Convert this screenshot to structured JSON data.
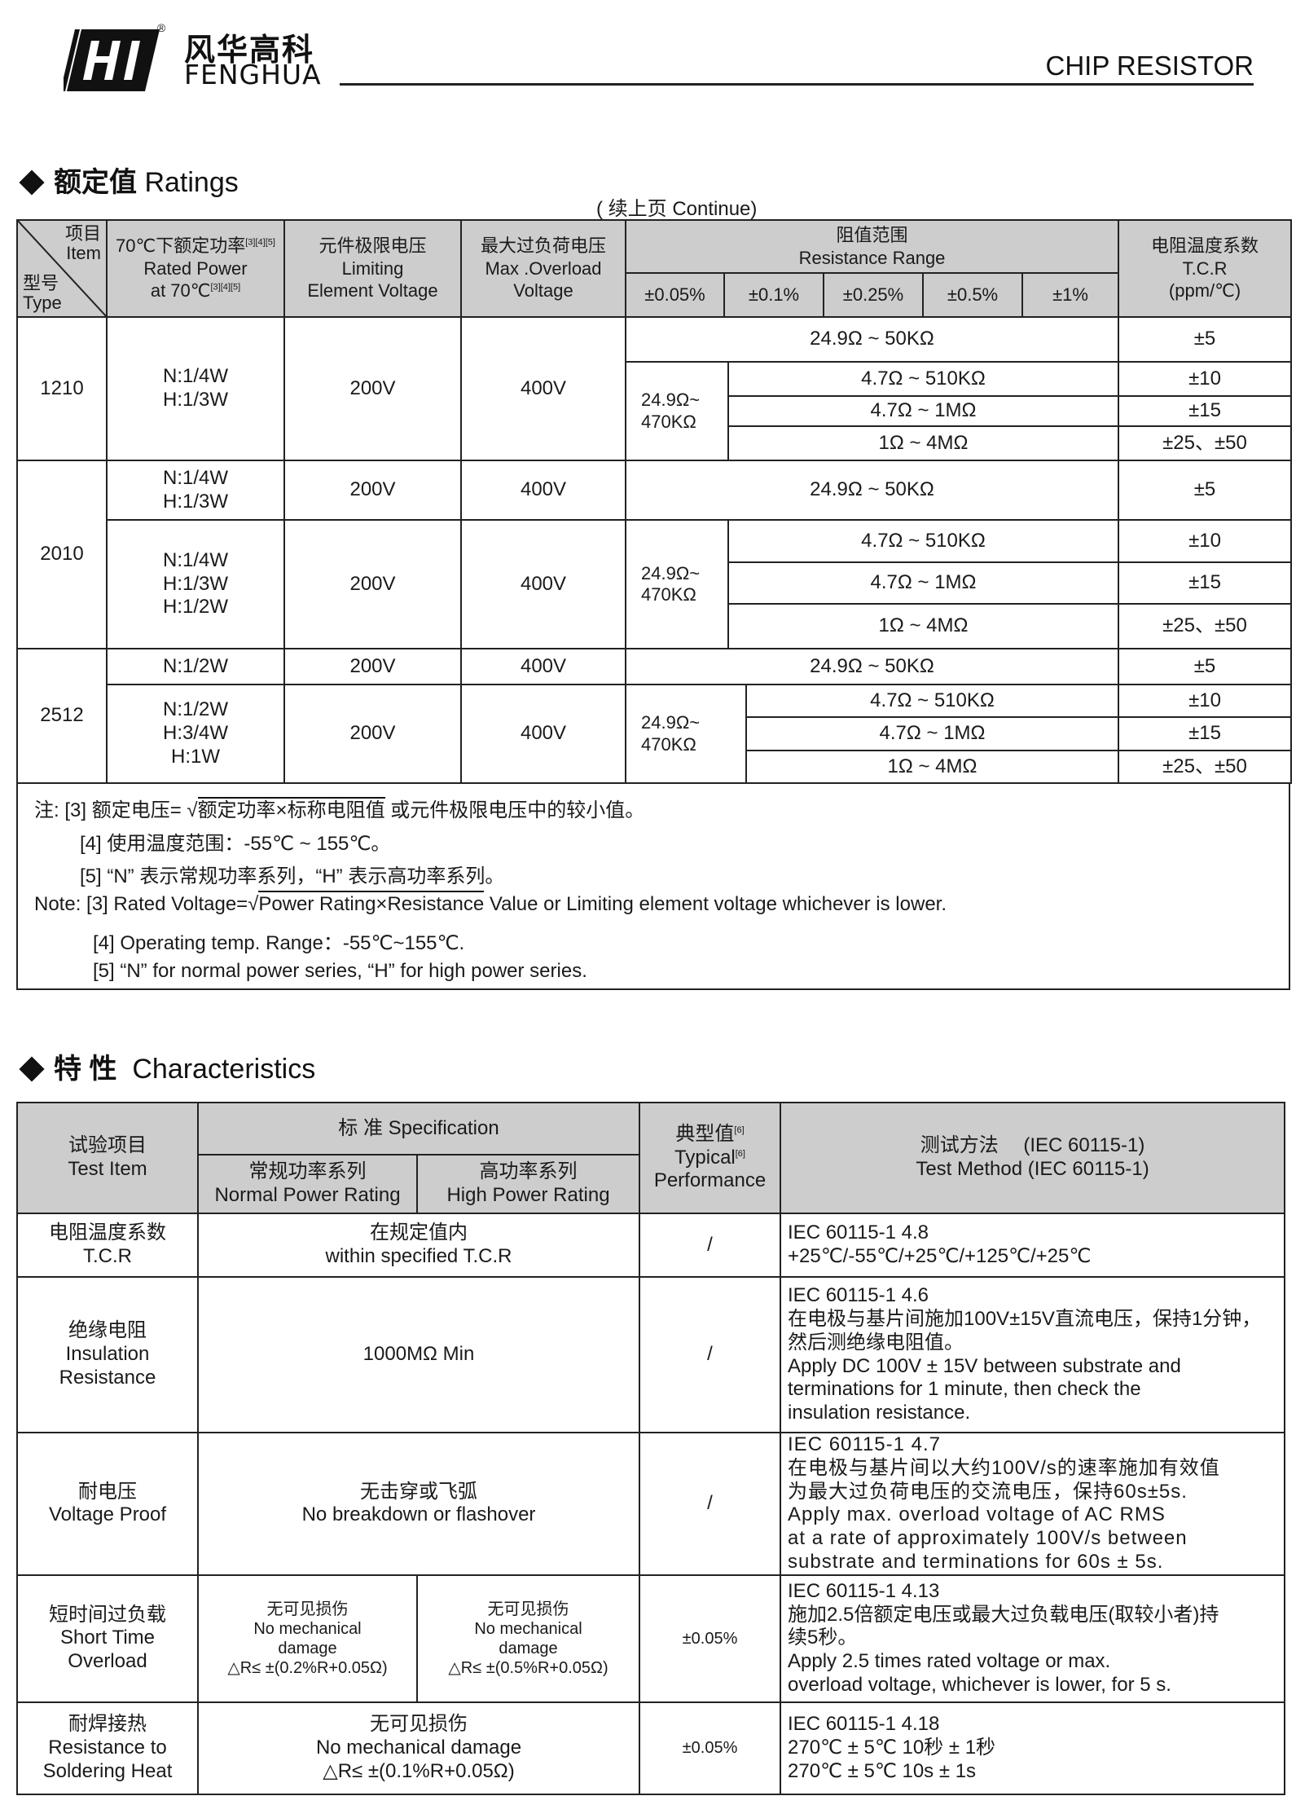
{
  "header": {
    "brand_cn": "风华高科",
    "brand_en": "FENGHUA",
    "registered": "®",
    "doc_title": "CHIP RESISTOR"
  },
  "ratings": {
    "title_cn": "额定值",
    "title_en": "Ratings",
    "continue": "( 续上页 Continue)",
    "columns": {
      "item_cn": "项目",
      "item_en": "Item",
      "type_cn": "型号",
      "type_en": "Type",
      "power_cn": "70℃下额定功率",
      "power_sup": "[3][4][5]",
      "power_en": "Rated Power",
      "power_en2": "at 70℃",
      "power_sup2": "[3][4][5]",
      "limit_cn": "元件极限电压",
      "limit_en1": "Limiting",
      "limit_en2": "Element Voltage",
      "over_cn": "最大过负荷电压",
      "over_en1": "Max .Overload",
      "over_en2": "Voltage",
      "range_cn": "阻值范围",
      "range_en": "Resistance Range",
      "tolerances": [
        "±0.05%",
        "±0.1%",
        "±0.25%",
        "±0.5%",
        "±1%"
      ],
      "tcr_cn": "电阻温度系数",
      "tcr_en": "T.C.R",
      "tcr_unit": "(ppm/℃)"
    },
    "types": [
      {
        "type": "1210",
        "power": "N:1/4W\nH:1/3W",
        "limiting": "200V",
        "overload": "400V",
        "range_top": "24.9Ω ~ 50KΩ",
        "tcr_top": "±5",
        "range_low": "24.9Ω~\n470KΩ",
        "ranges": [
          "4.7Ω ~ 510KΩ",
          "4.7Ω ~ 1MΩ",
          "1Ω ~ 4MΩ"
        ],
        "tcrs": [
          "±10",
          "±15",
          "±25、±50"
        ]
      },
      {
        "type": "2010",
        "power_top": "N:1/4W\nH:1/3W",
        "limiting_top": "200V",
        "overload_top": "400V",
        "range_top": "24.9Ω ~ 50KΩ",
        "tcr_top": "±5",
        "power": "N:1/4W\nH:1/3W\nH:1/2W",
        "limiting": "200V",
        "overload": "400V",
        "range_low": "24.9Ω~\n470KΩ",
        "ranges": [
          "4.7Ω ~ 510KΩ",
          "4.7Ω ~ 1MΩ",
          "1Ω ~ 4MΩ"
        ],
        "tcrs": [
          "±10",
          "±15",
          "±25、±50"
        ]
      },
      {
        "type": "2512",
        "power_top": "N:1/2W",
        "limiting_top": "200V",
        "overload_top": "400V",
        "range_top": "24.9Ω ~ 50KΩ",
        "tcr_top": "±5",
        "power": "N:1/2W\nH:3/4W\nH:1W",
        "limiting": "200V",
        "overload": "400V",
        "range_low": "24.9Ω~\n470KΩ",
        "ranges": [
          "4.7Ω ~ 510KΩ",
          "4.7Ω ~ 1MΩ",
          "1Ω ~ 4MΩ"
        ],
        "tcrs": [
          "±10",
          "±15",
          "±25、±50"
        ]
      }
    ],
    "notes": {
      "cn_prefix": "注:",
      "cn3_a": "[3] 额定电压=",
      "cn3_rad": "额定功率×标称电阻值",
      "cn3_b": " 或元件极限电压中的较小值。",
      "cn4": "[4] 使用温度范围：-55℃ ~ 155℃。",
      "cn5": "[5] “N” 表示常规功率系列，“H” 表示高功率系列。",
      "en3_a": "Note: [3] Rated Voltage=",
      "en3_rad": "Power Rating×Resistance",
      "en3_b": " Value or Limiting element voltage whichever is lower.",
      "en4": "[4] Operating temp. Range：-55℃~155℃.",
      "en5": "[5]  “N” for normal power series, “H” for high power series."
    }
  },
  "characteristics": {
    "title_cn": "特 性",
    "title_en": "Characteristics",
    "columns": {
      "item_cn": "试验项目",
      "item_en": "Test Item",
      "spec": "标 准 Specification",
      "normal_cn": "常规功率系列",
      "normal_en": "Normal Power Rating",
      "high_cn": "高功率系列",
      "high_en": "High Power Rating",
      "typical_cn": "典型值",
      "typical_sup": "[6]",
      "typical_en": "Typical",
      "typical_sup2": "[6]",
      "typical_en2": "Performance",
      "method_cn": "测试方法　 (IEC 60115-1)",
      "method_en": "Test Method  (IEC 60115-1)"
    },
    "rows": [
      {
        "item": "电阻温度系数\nT.C.R",
        "spec": "在规定值内\nwithin specified T.C.R",
        "typical": "/",
        "method": "IEC 60115-1 4.8\n+25℃/-55℃/+25℃/+125℃/+25℃"
      },
      {
        "item": "绝缘电阻\nInsulation\nResistance",
        "spec": "1000MΩ Min",
        "typical": "/",
        "method": "IEC 60115-1 4.6\n在电极与基片间施加100V±15V直流电压，保持1分钟，\n然后测绝缘电阻值。\nApply DC 100V ± 15V between substrate and\nterminations for 1 minute, then check the\ninsulation resistance."
      },
      {
        "item": "耐电压\nVoltage Proof",
        "spec": "无击穿或飞弧\nNo breakdown or flashover",
        "typical": "/",
        "method": "IEC 60115-1 4.7\n在电极与基片间以大约100V/s的速率施加有效值\n为最大过负荷电压的交流电压，保持60s±5s.\nApply max. overload voltage of AC RMS\nat a rate of approximately 100V/s between\nsubstrate and terminations for 60s ± 5s."
      },
      {
        "item": "短时间过负载\nShort Time\nOverload",
        "normal": "无可见损伤\nNo mechanical\ndamage\n△R≤ ±(0.2%R+0.05Ω)",
        "high": "无可见损伤\nNo mechanical\ndamage\n△R≤ ±(0.5%R+0.05Ω)",
        "typical": "±0.05%",
        "method": "IEC 60115-1 4.13\n施加2.5倍额定电压或最大过负载电压(取较小者)持\n续5秒。\nApply 2.5 times rated voltage or max.\noverload voltage, whichever is lower, for 5 s."
      },
      {
        "item": "耐焊接热\nResistance to\nSoldering Heat",
        "spec": "无可见损伤\nNo mechanical damage\n△R≤ ±(0.1%R+0.05Ω)",
        "typical": "±0.05%",
        "method": "IEC 60115-1 4.18\n270℃ ± 5℃   10秒 ± 1秒\n270℃ ± 5℃   10s ± 1s"
      }
    ]
  }
}
